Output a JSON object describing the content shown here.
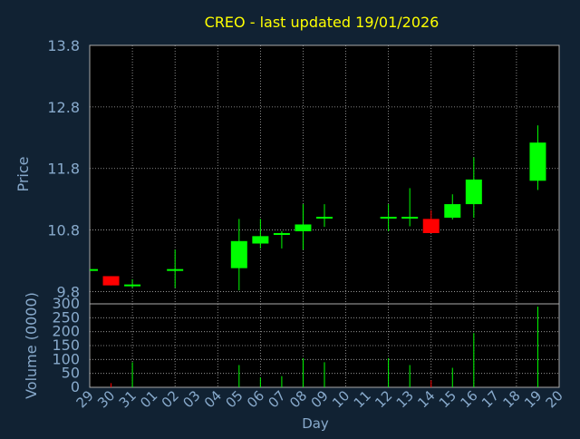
{
  "title": "CREO - last updated 19/01/2026",
  "colors": {
    "background": "#112233",
    "plot": "#000000",
    "grid": "#aaaaaa",
    "text": "#88aacc",
    "title": "#ffff00",
    "up": "#00ff00",
    "down": "#ff0000"
  },
  "chart_data": [
    {
      "type": "candlestick",
      "ylabel": "Price",
      "ylim": [
        9.6,
        13.8
      ],
      "y_ticks": [
        9.8,
        10.8,
        11.8,
        12.8,
        13.8
      ],
      "y_tick_labels": [
        "9.8",
        "10.8",
        "11.8",
        "12.8",
        "13.8"
      ],
      "grid": true,
      "candles": [
        {
          "day": "29",
          "open": 10.15,
          "high": 10.15,
          "low": 10.15,
          "close": 10.15
        },
        {
          "day": "30",
          "open": 10.05,
          "high": 10.05,
          "low": 9.9,
          "close": 9.9
        },
        {
          "day": "31",
          "open": 9.9,
          "high": 10.0,
          "low": 9.86,
          "close": 9.9
        },
        {
          "day": "02",
          "open": 10.15,
          "high": 10.48,
          "low": 9.86,
          "close": 10.15
        },
        {
          "day": "05",
          "open": 10.18,
          "high": 10.98,
          "low": 9.82,
          "close": 10.62
        },
        {
          "day": "06",
          "open": 10.58,
          "high": 10.98,
          "low": 10.5,
          "close": 10.7
        },
        {
          "day": "07",
          "open": 10.72,
          "high": 10.78,
          "low": 10.5,
          "close": 10.75
        },
        {
          "day": "08",
          "open": 10.78,
          "high": 11.22,
          "low": 10.48,
          "close": 10.89
        },
        {
          "day": "09",
          "open": 10.98,
          "high": 11.22,
          "low": 10.85,
          "close": 11.0
        },
        {
          "day": "12",
          "open": 10.98,
          "high": 11.22,
          "low": 10.78,
          "close": 11.0
        },
        {
          "day": "13",
          "open": 10.98,
          "high": 11.48,
          "low": 10.86,
          "close": 11.0
        },
        {
          "day": "14",
          "open": 10.98,
          "high": 11.12,
          "low": 10.75,
          "close": 10.75
        },
        {
          "day": "15",
          "open": 11.0,
          "high": 11.38,
          "low": 10.97,
          "close": 11.22
        },
        {
          "day": "16",
          "open": 11.22,
          "high": 11.98,
          "low": 11.0,
          "close": 11.62
        },
        {
          "day": "19",
          "open": 11.6,
          "high": 12.5,
          "low": 11.45,
          "close": 12.22
        }
      ]
    },
    {
      "type": "bar",
      "ylabel": "Volume (0000)",
      "xlabel": "Day",
      "ylim": [
        0,
        300
      ],
      "y_ticks": [
        0,
        50,
        100,
        150,
        200,
        250,
        300
      ],
      "y_tick_labels": [
        "0",
        "50",
        "100",
        "150",
        "200",
        "250",
        "300"
      ],
      "categories": [
        "29",
        "30",
        "31",
        "01",
        "02",
        "03",
        "04",
        "05",
        "06",
        "07",
        "08",
        "09",
        "10",
        "11",
        "12",
        "13",
        "14",
        "15",
        "16",
        "17",
        "18",
        "19",
        "20"
      ],
      "values": [
        0,
        15,
        90,
        0,
        0,
        0,
        0,
        80,
        35,
        40,
        105,
        90,
        0,
        0,
        105,
        80,
        25,
        70,
        195,
        0,
        0,
        290,
        0
      ],
      "bar_colors": [
        "up",
        "down",
        "up",
        "up",
        "up",
        "up",
        "up",
        "up",
        "up",
        "up",
        "up",
        "up",
        "up",
        "up",
        "up",
        "up",
        "down",
        "up",
        "up",
        "up",
        "up",
        "up",
        "up"
      ]
    }
  ]
}
